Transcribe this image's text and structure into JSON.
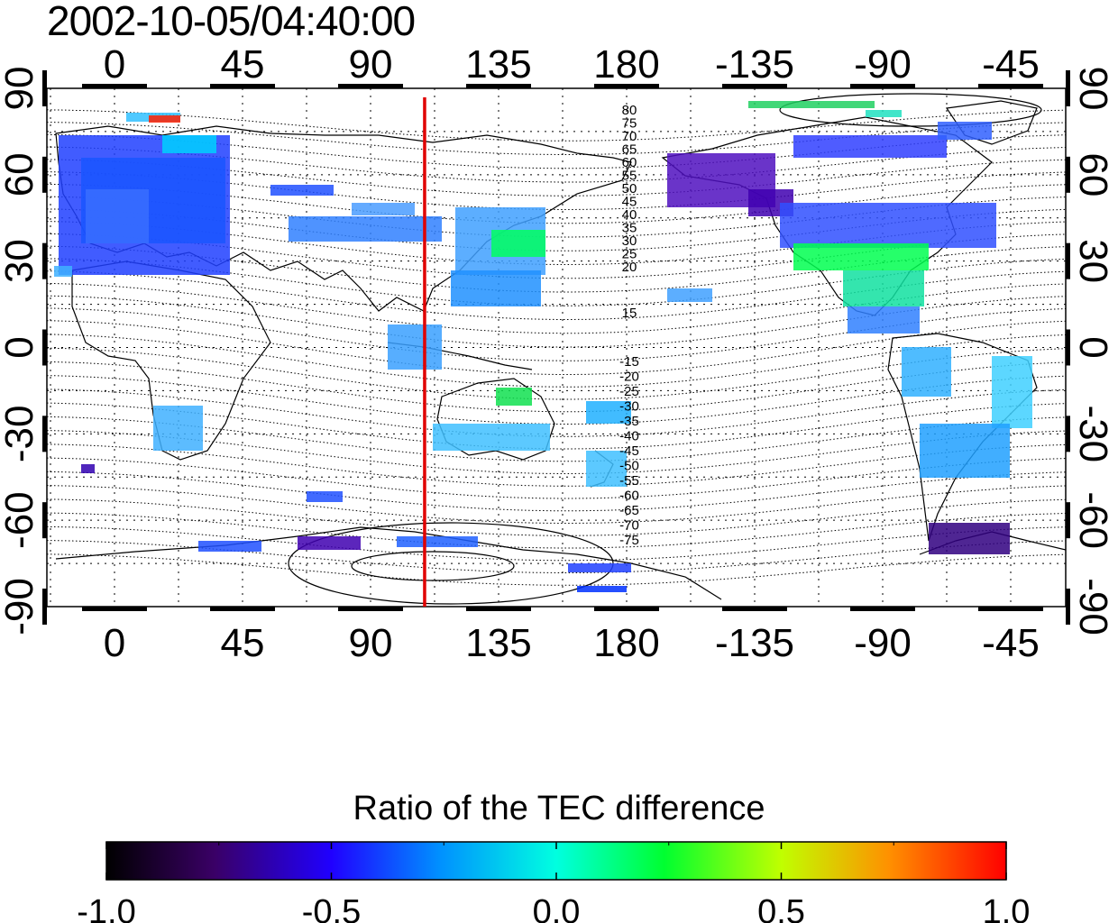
{
  "title": "2002-10-05/04:40:00",
  "map": {
    "x_ticks": [
      "0",
      "45",
      "90",
      "135",
      "180",
      "-135",
      "-90",
      "-45"
    ],
    "y_ticks": [
      "90",
      "60",
      "30",
      "0",
      "-30",
      "-60",
      "-90"
    ],
    "marker_longitude": 109,
    "marker_color": "#e00000",
    "north_contour_labels": [
      "80",
      "75",
      "70",
      "65",
      "60",
      "55",
      "50",
      "45",
      "40",
      "35",
      "30",
      "25",
      "20",
      "15"
    ],
    "south_contour_labels": [
      "-15",
      "-20",
      "-25",
      "-30",
      "-35",
      "-40",
      "-45",
      "-50",
      "-55",
      "-60",
      "-65",
      "-70",
      "-75"
    ]
  },
  "colorbar": {
    "title": "Ratio of the TEC difference",
    "ticks": [
      "-1.0",
      "-0.5",
      "0.0",
      "0.5",
      "1.0"
    ],
    "range": [
      -1.0,
      1.0
    ]
  }
}
